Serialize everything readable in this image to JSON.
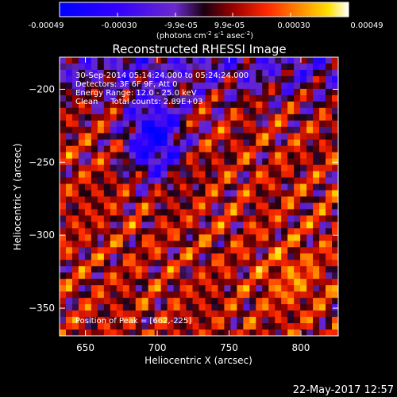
{
  "colorbar": {
    "tick_labels": [
      "-0.00049",
      "-0.00030",
      "-9.9e-05",
      "9.9e-05",
      "0.00030",
      "0.00049"
    ],
    "units_prefix": "(photons cm",
    "units_exp1": "-2",
    "units_mid": " s",
    "units_exp2": "-1",
    "units_suffix": " asec",
    "units_exp3": "-2",
    "units_close": ")"
  },
  "chart_data": {
    "type": "heatmap",
    "title": "Reconstructed RHESSI Image",
    "xlabel": "Heliocentric X (arcsec)",
    "ylabel": "Heliocentric Y (arcsec)",
    "xlim": [
      632,
      826
    ],
    "ylim": [
      -369,
      -178
    ],
    "xticks": [
      650,
      700,
      750,
      800
    ],
    "yticks": [
      -200,
      -250,
      -300,
      -350
    ],
    "xtick_labels": [
      "650",
      "700",
      "750",
      "800"
    ],
    "ytick_labels": [
      "−200",
      "−250",
      "−300",
      "−350"
    ],
    "color_range": [
      -0.00049,
      0.00049
    ],
    "annotations": [
      "30-Sep-2014 05:14:24.000 to 05:24:24.000",
      "Detectors: 3F 6F 9F, Att 0",
      "Energy Range: 12.0 - 25.0 keV",
      "Clean     Total counts: 2.89E+03"
    ],
    "peak_label": "Position of Peak = [662,-225]",
    "peak_position": [
      662,
      -225
    ]
  },
  "footer": {
    "timestamp": "22-May-2017 12:57"
  }
}
